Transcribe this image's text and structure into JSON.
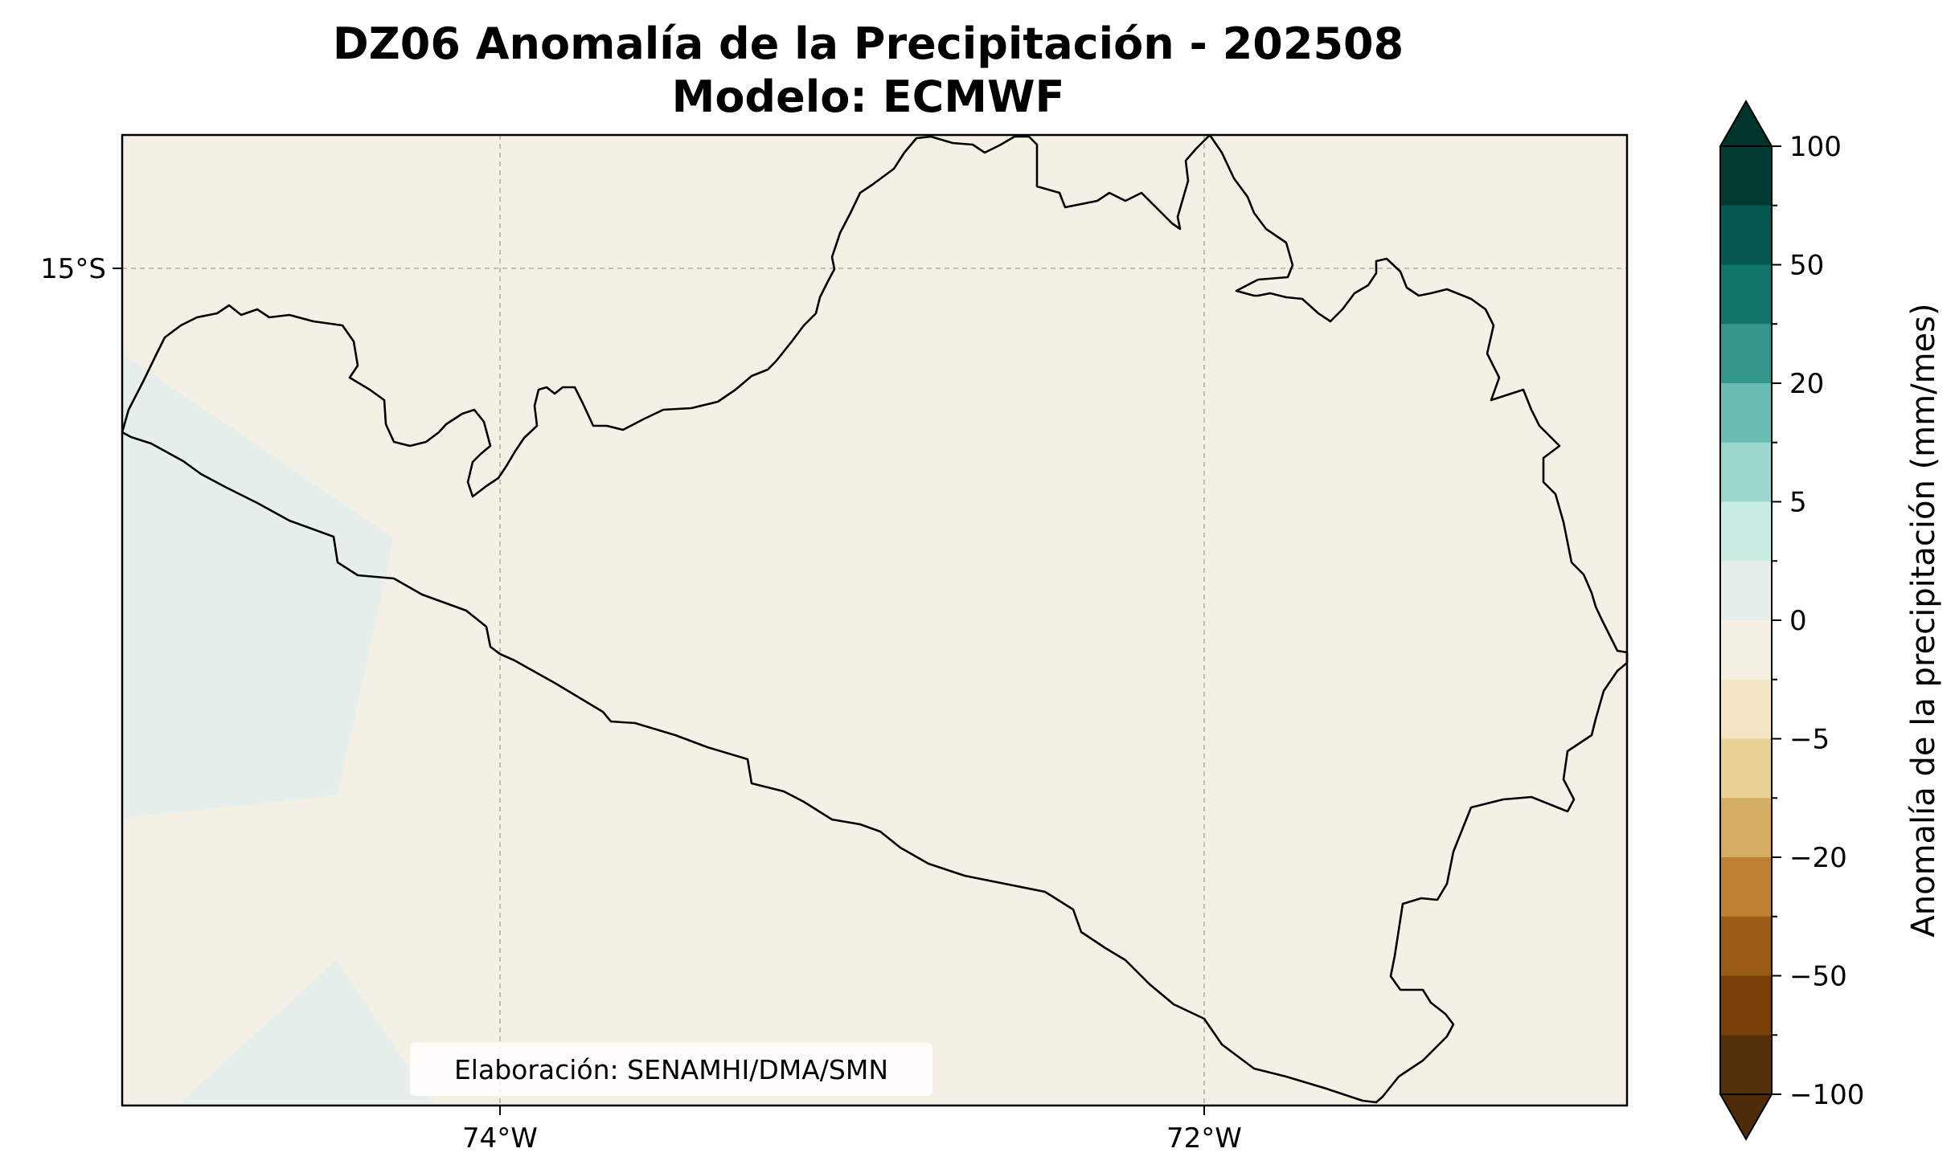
{
  "title": {
    "line1": "DZ06 Anomalía de la Precipitación - 202508",
    "line2": "Modelo: ECMWF"
  },
  "map": {
    "region": "DZ06",
    "longitude_ticks": [
      "74°W",
      "72°W"
    ],
    "latitude_ticks": [
      "15°S"
    ],
    "gridlines": true,
    "background_anomaly_class": "0 to 2",
    "ocean_anomaly_class": "2 to 5",
    "credit": "Elaboración: SENAMHI/DMA/SMN"
  },
  "colorbar": {
    "label": "Anomalía de la precipitación (mm/mes)",
    "extend": "both",
    "tick_labels": [
      "100",
      "50",
      "20",
      "5",
      "0",
      "−5",
      "−20",
      "−50",
      "−100"
    ],
    "colors_top_to_bottom": [
      "#013b32",
      "#05584f",
      "#12756c",
      "#35968c",
      "#69bdb1",
      "#9bd9ce",
      "#c8ebe4",
      "#e6efec",
      "#f4f0e6",
      "#f5e6c3",
      "#e7d193",
      "#d5ad62",
      "#bd7f31",
      "#9a5b16",
      "#784007",
      "#542f0b"
    ],
    "over_color": "#01352c",
    "under_color": "#4f2c09"
  }
}
